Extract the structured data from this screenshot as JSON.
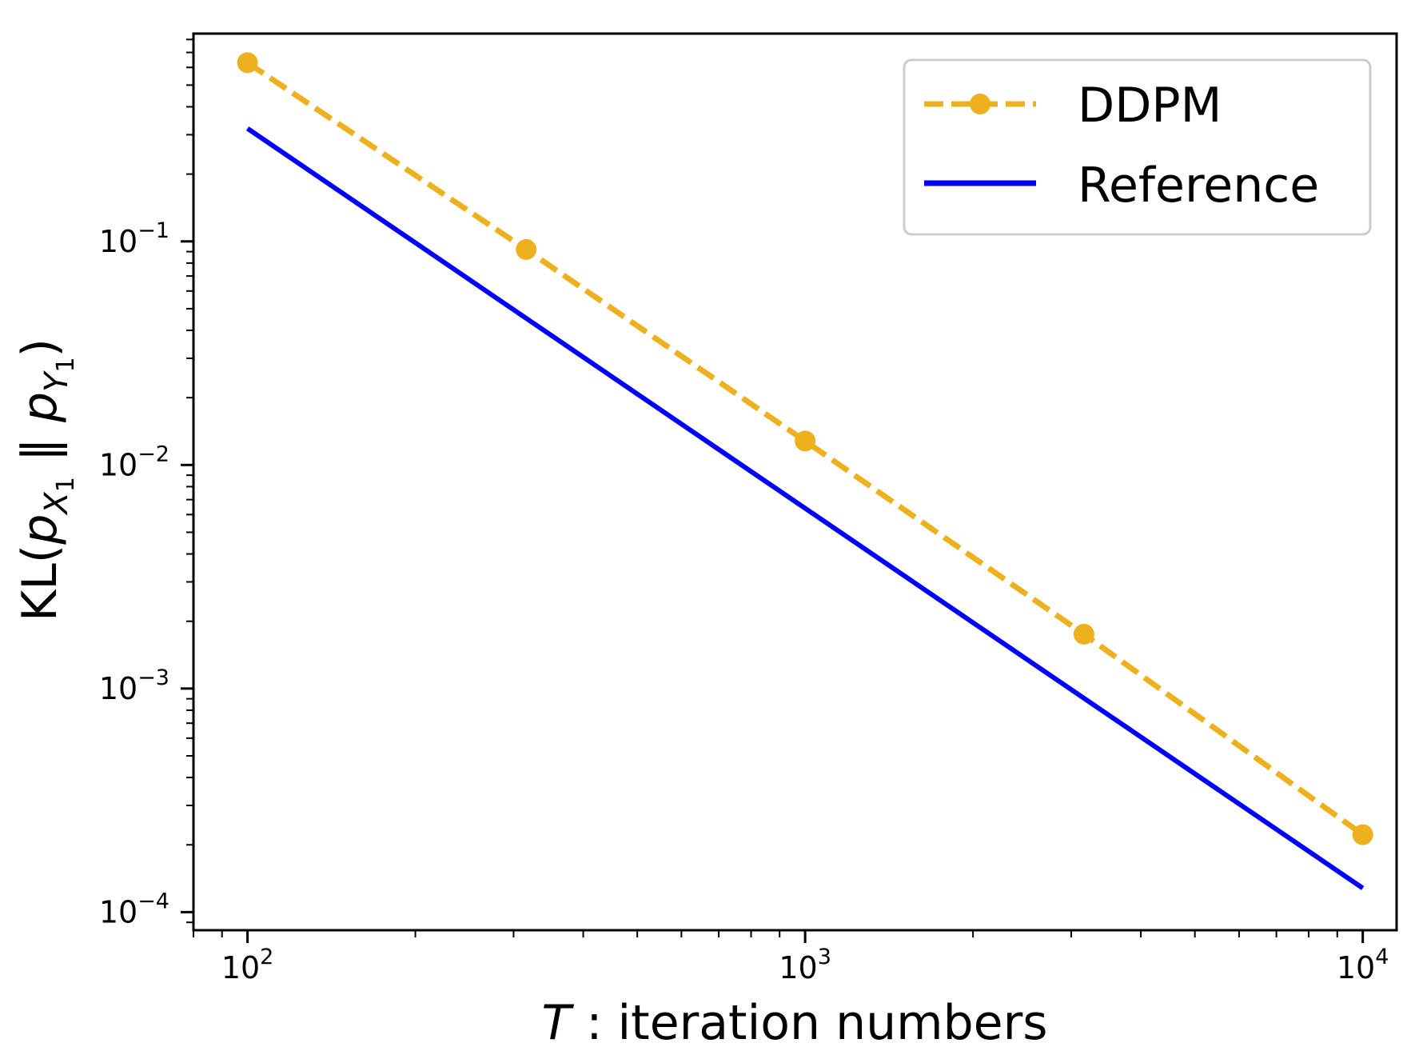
{
  "chart_data": {
    "type": "line",
    "xscale": "log",
    "yscale": "log",
    "xlim": [
      80,
      11500
    ],
    "ylim": [
      8.3e-05,
      0.85
    ],
    "grid": false,
    "legend_position": "top-right",
    "xlabel": {
      "italic": "T",
      "rest": " : iteration numbers"
    },
    "ylabel": {
      "prefix": "KL(",
      "p": "p",
      "X": "X",
      "one": "1",
      "sep": " ‖ ",
      "Y": "Y",
      "suffix": ")"
    },
    "xticks": [
      {
        "value": 100,
        "base": "10",
        "exp": "2"
      },
      {
        "value": 1000,
        "base": "10",
        "exp": "3"
      },
      {
        "value": 10000,
        "base": "10",
        "exp": "4"
      }
    ],
    "yticks": [
      {
        "value": 0.1,
        "base": "10",
        "exp": "−1"
      },
      {
        "value": 0.01,
        "base": "10",
        "exp": "−2"
      },
      {
        "value": 0.001,
        "base": "10",
        "exp": "−3"
      },
      {
        "value": 0.0001,
        "base": "10",
        "exp": "−4"
      }
    ],
    "series": [
      {
        "name": "DDPM",
        "color": "#EDB120",
        "style": "dashed",
        "marker": "circle",
        "x": [
          100,
          316,
          1000,
          3162,
          10000
        ],
        "y": [
          0.63,
          0.092,
          0.0128,
          0.00175,
          0.000222
        ]
      },
      {
        "name": "Reference",
        "color": "#0000FF",
        "style": "solid",
        "marker": "none",
        "x": [
          100,
          10000
        ],
        "y": [
          0.32,
          0.000128
        ]
      }
    ]
  }
}
